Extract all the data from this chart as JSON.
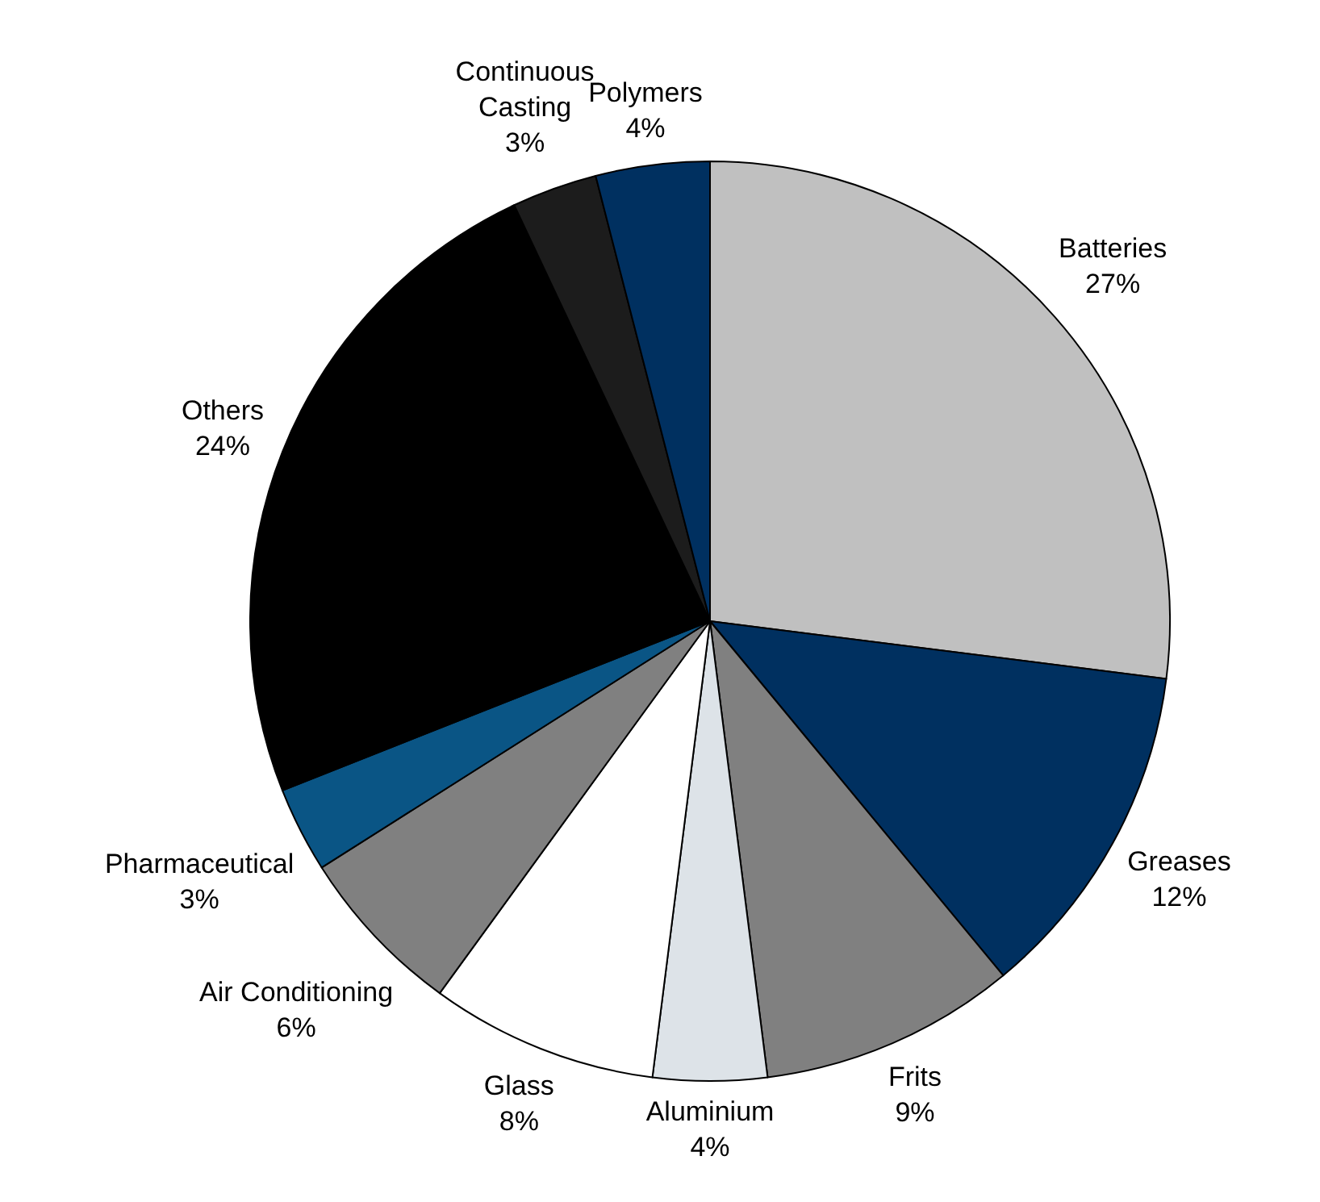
{
  "chart_data": {
    "type": "pie",
    "categories": [
      "Batteries",
      "Greases",
      "Frits",
      "Aluminium",
      "Glass",
      "Air Conditioning",
      "Pharmaceutical",
      "Others",
      "Continuous Casting",
      "Polymers"
    ],
    "values": [
      27,
      12,
      9,
      4,
      8,
      6,
      3,
      24,
      3,
      4
    ],
    "value_labels": [
      "27%",
      "12%",
      "9%",
      "4%",
      "8%",
      "6%",
      "3%",
      "24%",
      "3%",
      "4%"
    ],
    "colors": [
      "#c0c0c0",
      "#003060",
      "#808080",
      "#dde3e8",
      "#ffffff",
      "#808080",
      "#0a5585",
      "#000000",
      "#1c1c1c",
      "#003060"
    ],
    "legend": false
  }
}
